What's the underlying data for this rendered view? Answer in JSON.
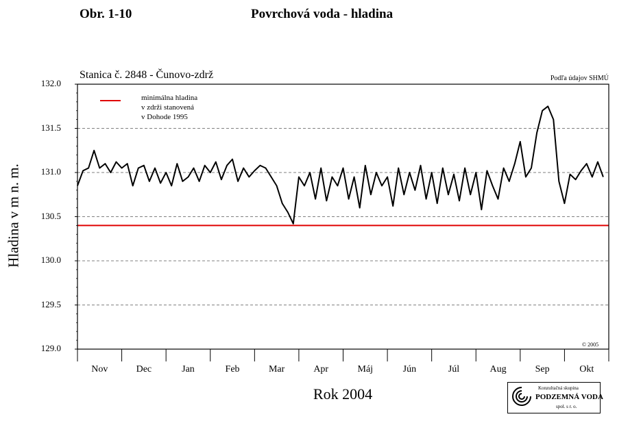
{
  "header": {
    "figure_label": "Obr. 1-10",
    "figure_title": "Povrchová voda - hladina"
  },
  "chart_meta": {
    "station": "Stanica č. 2848 - Čunovo-zdrž",
    "source_note": "Podľa údajov SHMÚ",
    "copyright": "© 2005"
  },
  "legend": {
    "lines": [
      "minimálna hladina",
      "v zdrži stanovená",
      "v Dohode 1995"
    ],
    "color": "#e00000"
  },
  "logo": {
    "top_text": "Konzultačná skupina",
    "main_text": "PODZEMNÁ VODA",
    "sub_text": "spol. s r. o."
  },
  "chart_data": {
    "type": "line",
    "title": "Povrchová voda - hladina",
    "xlabel": "Rok 2004",
    "ylabel": "Hladina v m n. m.",
    "ylim": [
      129.0,
      132.0
    ],
    "yticks": [
      "132.0",
      "131.5",
      "131.0",
      "130.5",
      "130.0",
      "129.5",
      "129.0"
    ],
    "xticks": [
      "Nov",
      "Dec",
      "Jan",
      "Feb",
      "Mar",
      "Apr",
      "Máj",
      "Jún",
      "Júl",
      "Aug",
      "Sep",
      "Okt"
    ],
    "grid": "horizontal dashed",
    "threshold": {
      "value": 130.4,
      "color": "#e00000"
    },
    "series": [
      {
        "color": "#000000",
        "x": [
          0,
          0.125,
          0.25,
          0.375,
          0.5,
          0.625,
          0.75,
          0.875,
          1,
          1.125,
          1.25,
          1.375,
          1.5,
          1.625,
          1.75,
          1.875,
          2,
          2.125,
          2.25,
          2.375,
          2.5,
          2.625,
          2.75,
          2.875,
          3,
          3.125,
          3.25,
          3.375,
          3.5,
          3.625,
          3.75,
          3.875,
          4,
          4.125,
          4.25,
          4.375,
          4.5,
          4.625,
          4.75,
          4.875,
          5,
          5.125,
          5.25,
          5.375,
          5.5,
          5.625,
          5.75,
          5.875,
          6,
          6.125,
          6.25,
          6.375,
          6.5,
          6.625,
          6.75,
          6.875,
          7,
          7.125,
          7.25,
          7.375,
          7.5,
          7.625,
          7.75,
          7.875,
          8,
          8.125,
          8.25,
          8.375,
          8.5,
          8.625,
          8.75,
          8.875,
          9,
          9.125,
          9.25,
          9.375,
          9.5,
          9.625,
          9.75,
          9.875,
          10,
          10.125,
          10.25,
          10.375,
          10.5,
          10.625,
          10.75,
          10.875,
          11,
          11.125,
          11.25,
          11.375,
          11.5,
          11.625,
          11.75,
          11.875
        ],
        "y": [
          130.85,
          131.02,
          131.05,
          131.25,
          131.05,
          131.1,
          131.0,
          131.12,
          131.05,
          131.1,
          130.85,
          131.05,
          131.08,
          130.9,
          131.05,
          130.88,
          131.0,
          130.85,
          131.1,
          130.9,
          130.95,
          131.05,
          130.9,
          131.08,
          131.0,
          131.12,
          130.92,
          131.08,
          131.15,
          130.9,
          131.05,
          130.95,
          131.02,
          131.08,
          131.05,
          130.95,
          130.85,
          130.65,
          130.55,
          130.42,
          130.95,
          130.85,
          131.0,
          130.7,
          131.05,
          130.68,
          130.95,
          130.85,
          131.05,
          130.7,
          130.95,
          130.6,
          131.08,
          130.75,
          131.0,
          130.85,
          130.95,
          130.62,
          131.05,
          130.75,
          131.0,
          130.8,
          131.08,
          130.7,
          131.0,
          130.65,
          131.05,
          130.75,
          130.98,
          130.68,
          131.05,
          130.75,
          131.0,
          130.58,
          131.02,
          130.85,
          130.7,
          131.05,
          130.9,
          131.1,
          131.35,
          130.95,
          131.05,
          131.45,
          131.7,
          131.75,
          131.6,
          130.9,
          130.65,
          130.98,
          130.92,
          131.02,
          131.1,
          130.95,
          131.12,
          130.95
        ]
      }
    ]
  }
}
